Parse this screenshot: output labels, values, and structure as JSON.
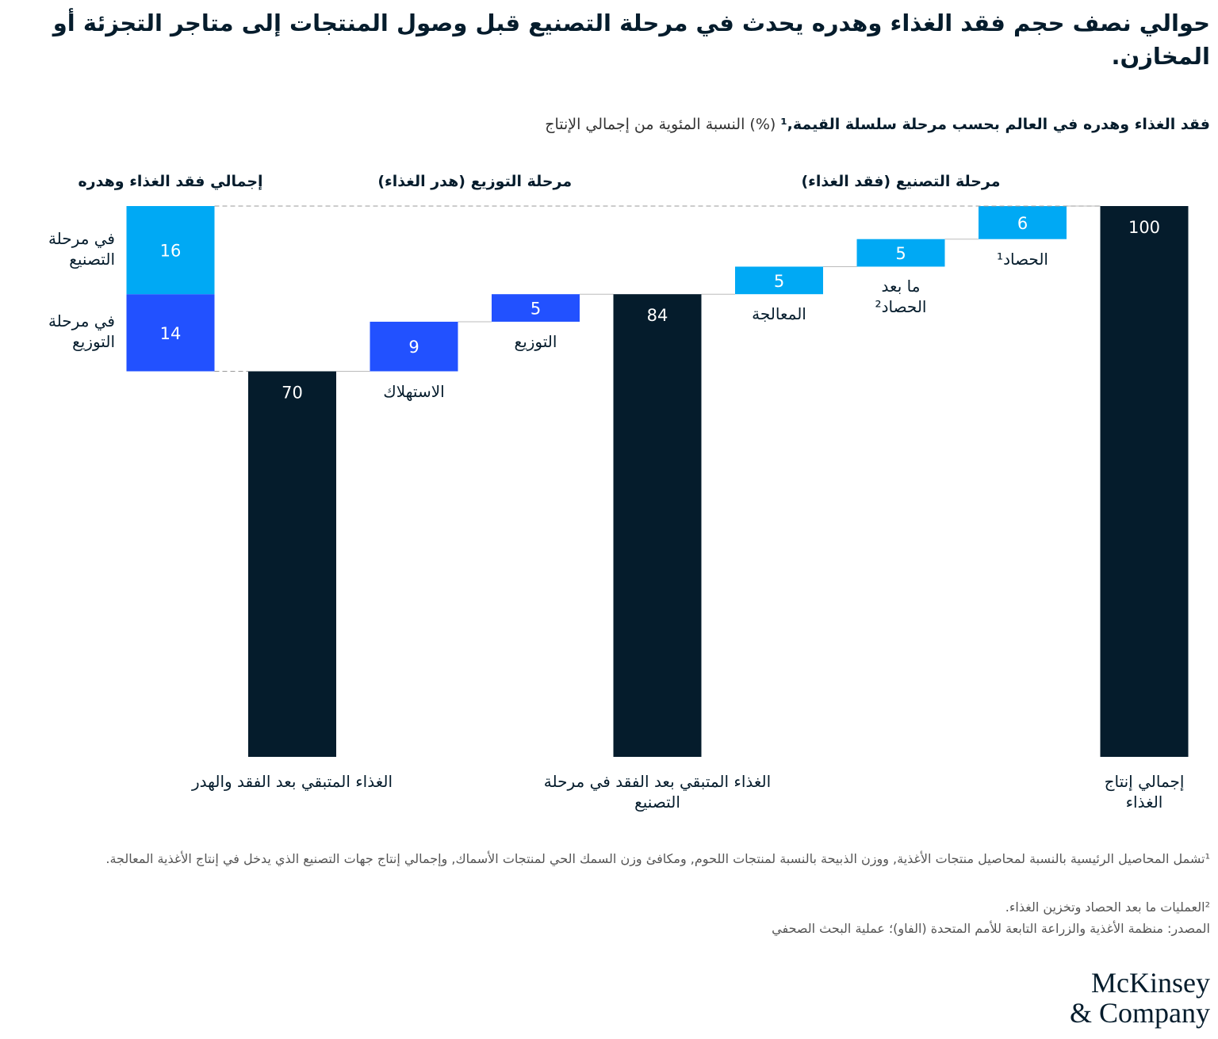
{
  "chart_data": {
    "type": "waterfall",
    "title": "حوالي نصف حجم فقد الغذاء وهدره يحدث في مرحلة التصنيع قبل وصول المنتجات إلى متاجر التجزئة أو المخازن.",
    "subtitle": "فقد الغذاء وهدره في العالم بحسب مرحلة سلسلة القيمة,¹",
    "unit": "(%) النسبة المئوية من إجمالي الإنتاج",
    "ylim": [
      0,
      100
    ],
    "categories": [
      "إجمالي إنتاج الغذاء",
      "الحصاد¹",
      "ما بعد الحصاد²",
      "المعالجة",
      "الغذاء المتبقي بعد الفقد في مرحلة التصنيع",
      "التوزيع",
      "الاستهلاك",
      "الغذاء المتبقي بعد الفقد والهدر"
    ],
    "values": [
      100,
      6,
      5,
      5,
      84,
      5,
      9,
      70
    ],
    "measure": [
      "total",
      "relative",
      "relative",
      "relative",
      "total",
      "relative",
      "relative",
      "total"
    ],
    "colors": [
      "#051c2c",
      "#00a9f4",
      "#00a9f4",
      "#00a9f4",
      "#051c2c",
      "#2251ff",
      "#2251ff",
      "#051c2c"
    ],
    "groups": [
      "مرحلة التصنيع (فقد الغذاء)",
      "مرحلة التوزيع (هدر الغذاء)",
      "إجمالي فقد الغذاء وهدره"
    ],
    "stack": {
      "series": [
        {
          "name": "في مرحلة التصنيع",
          "value": 16,
          "color": "#00a9f4"
        },
        {
          "name": "في مرحلة التوزيع",
          "value": 14,
          "color": "#2251ff"
        }
      ]
    }
  },
  "footnotes": [
    "¹تشمل المحاصيل الرئيسية بالنسبة لمحاصيل منتجات الأغذية, ووزن الذبيحة بالنسبة لمنتجات اللحوم, ومكافئ وزن السمك الحي لمنتجات الأسماك, وإجمالي إنتاج جهات التصنيع الذي يدخل في إنتاج الأغذية المعالجة.",
    "²العمليات ما بعد الحصاد وتخزين الغذاء.",
    "المصدر: منظمة الأغذية والزراعة التابعة للأمم المتحدة (الفاو)؛ عملية البحث الصحفي"
  ],
  "logo": [
    "McKinsey",
    "& Company"
  ]
}
